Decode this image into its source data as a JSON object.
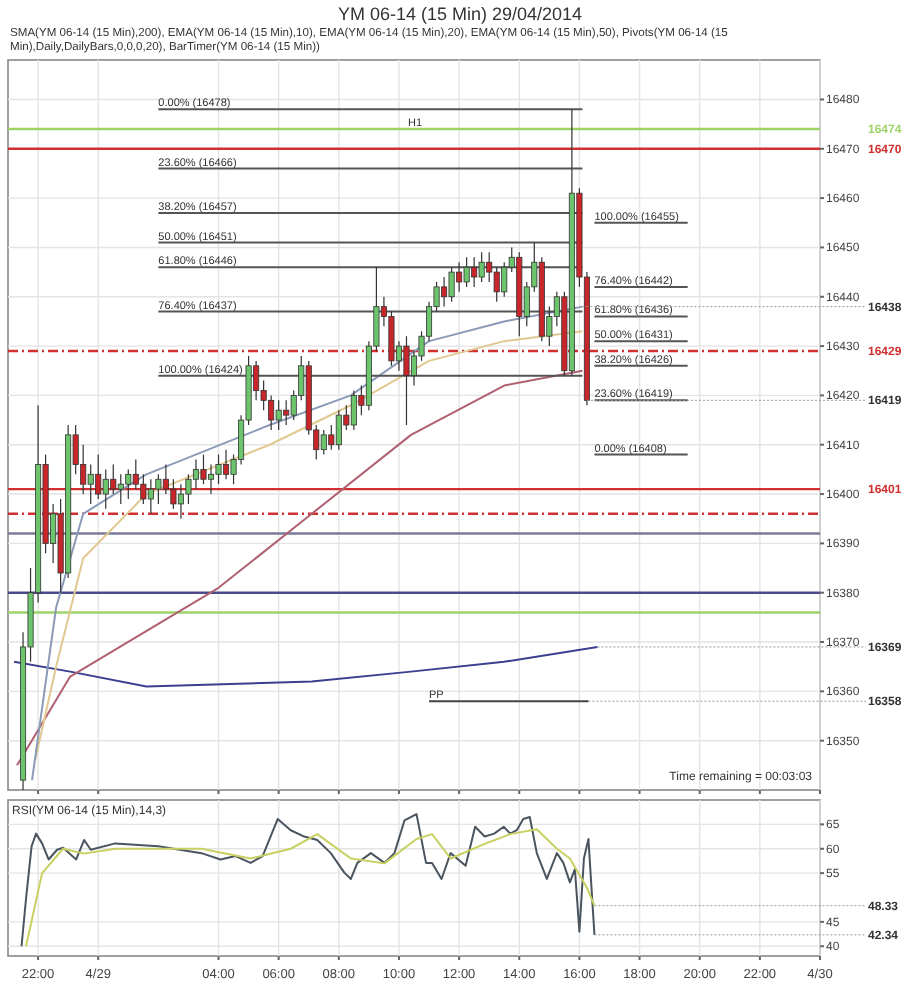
{
  "chart_data": [
    {
      "type": "candlestick",
      "title": "YM 06-14 (15 Min)  29/04/2014",
      "subtitle": "SMA(YM 06-14 (15 Min),200), EMA(YM 06-14 (15 Min),10), EMA(YM 06-14 (15 Min),20), EMA(YM 06-14 (15 Min),50), Pivots(YM 06-14 (15 Min),Daily,DailyBars,0,0,0,20), BarTimer(YM 06-14 (15 Min))",
      "x": [
        "2014-04-28T21:30",
        "2014-04-28T21:45",
        "2014-04-28T22:00",
        "2014-04-28T22:15",
        "2014-04-28T22:30",
        "2014-04-28T22:45",
        "2014-04-28T23:00",
        "2014-04-28T23:15",
        "2014-04-28T23:30",
        "2014-04-28T23:45",
        "2014-04-29T00:00",
        "2014-04-29T00:15",
        "2014-04-29T00:30",
        "2014-04-29T00:45",
        "2014-04-29T01:00",
        "2014-04-29T01:15",
        "2014-04-29T01:30",
        "2014-04-29T01:45",
        "2014-04-29T02:00",
        "2014-04-29T02:15",
        "2014-04-29T02:30",
        "2014-04-29T02:45",
        "2014-04-29T03:00",
        "2014-04-29T03:15",
        "2014-04-29T03:30",
        "2014-04-29T03:45",
        "2014-04-29T04:00",
        "2014-04-29T04:15",
        "2014-04-29T04:30",
        "2014-04-29T04:45",
        "2014-04-29T05:00",
        "2014-04-29T05:15",
        "2014-04-29T05:30",
        "2014-04-29T05:45",
        "2014-04-29T06:00",
        "2014-04-29T06:15",
        "2014-04-29T06:30",
        "2014-04-29T06:45",
        "2014-04-29T07:00",
        "2014-04-29T07:15",
        "2014-04-29T07:30",
        "2014-04-29T07:45",
        "2014-04-29T08:00",
        "2014-04-29T08:15",
        "2014-04-29T08:30",
        "2014-04-29T08:45",
        "2014-04-29T09:00",
        "2014-04-29T09:15",
        "2014-04-29T09:30",
        "2014-04-29T09:45",
        "2014-04-29T10:00",
        "2014-04-29T10:15",
        "2014-04-29T10:30",
        "2014-04-29T10:45",
        "2014-04-29T11:00",
        "2014-04-29T11:15",
        "2014-04-29T11:30",
        "2014-04-29T11:45",
        "2014-04-29T12:00",
        "2014-04-29T12:15",
        "2014-04-29T12:30",
        "2014-04-29T12:45",
        "2014-04-29T13:00",
        "2014-04-29T13:15",
        "2014-04-29T13:30",
        "2014-04-29T13:45",
        "2014-04-29T14:00",
        "2014-04-29T14:15",
        "2014-04-29T14:30",
        "2014-04-29T14:45",
        "2014-04-29T15:00",
        "2014-04-29T15:15",
        "2014-04-29T15:30",
        "2014-04-29T15:45",
        "2014-04-29T16:00",
        "2014-04-29T16:15"
      ],
      "ohlc": [
        [
          16342,
          16372,
          16340,
          16369
        ],
        [
          16369,
          16385,
          16366,
          16380
        ],
        [
          16380,
          16418,
          16378,
          16406
        ],
        [
          16406,
          16408,
          16388,
          16390
        ],
        [
          16390,
          16398,
          16386,
          16396
        ],
        [
          16396,
          16399,
          16380,
          16384
        ],
        [
          16384,
          16414,
          16383,
          16412
        ],
        [
          16412,
          16414,
          16404,
          16406
        ],
        [
          16406,
          16410,
          16400,
          16402
        ],
        [
          16402,
          16406,
          16398,
          16404
        ],
        [
          16404,
          16408,
          16399,
          16400
        ],
        [
          16400,
          16405,
          16397,
          16403
        ],
        [
          16403,
          16406,
          16400,
          16401
        ],
        [
          16401,
          16404,
          16398,
          16402
        ],
        [
          16402,
          16405,
          16399,
          16404
        ],
        [
          16404,
          16407,
          16401,
          16402
        ],
        [
          16402,
          16404,
          16398,
          16399
        ],
        [
          16399,
          16403,
          16396,
          16401
        ],
        [
          16401,
          16404,
          16398,
          16403
        ],
        [
          16403,
          16406,
          16400,
          16401
        ],
        [
          16401,
          16403,
          16397,
          16398
        ],
        [
          16398,
          16402,
          16395,
          16400
        ],
        [
          16400,
          16404,
          16398,
          16403
        ],
        [
          16403,
          16407,
          16401,
          16405
        ],
        [
          16405,
          16408,
          16402,
          16403
        ],
        [
          16403,
          16406,
          16400,
          16404
        ],
        [
          16404,
          16408,
          16402,
          16406
        ],
        [
          16406,
          16409,
          16403,
          16404
        ],
        [
          16404,
          16408,
          16402,
          16407
        ],
        [
          16407,
          16416,
          16406,
          16415
        ],
        [
          16415,
          16428,
          16414,
          16426
        ],
        [
          16426,
          16427,
          16419,
          16421
        ],
        [
          16421,
          16423,
          16417,
          16419
        ],
        [
          16419,
          16420,
          16413,
          16415
        ],
        [
          16415,
          16419,
          16413,
          16417
        ],
        [
          16417,
          16419,
          16414,
          16416
        ],
        [
          16416,
          16421,
          16415,
          16420
        ],
        [
          16420,
          16428,
          16419,
          16426
        ],
        [
          16426,
          16427,
          16412,
          16413
        ],
        [
          16413,
          16414,
          16407,
          16409
        ],
        [
          16409,
          16413,
          16408,
          16412
        ],
        [
          16412,
          16414,
          16409,
          16410
        ],
        [
          16410,
          16417,
          16409,
          16416
        ],
        [
          16416,
          16418,
          16413,
          16414
        ],
        [
          16414,
          16421,
          16413,
          16420
        ],
        [
          16420,
          16422,
          16416,
          16418
        ],
        [
          16418,
          16431,
          16417,
          16430
        ],
        [
          16430,
          16446,
          16429,
          16438
        ],
        [
          16438,
          16440,
          16434,
          16436
        ],
        [
          16436,
          16437,
          16426,
          16427
        ],
        [
          16427,
          16431,
          16425,
          16430
        ],
        [
          16430,
          16432,
          16414,
          16424
        ],
        [
          16424,
          16429,
          16422,
          16428
        ],
        [
          16428,
          16433,
          16427,
          16432
        ],
        [
          16432,
          16439,
          16431,
          16438
        ],
        [
          16438,
          16443,
          16437,
          16442
        ],
        [
          16442,
          16444,
          16438,
          16440
        ],
        [
          16440,
          16446,
          16439,
          16445
        ],
        [
          16445,
          16447,
          16441,
          16443
        ],
        [
          16443,
          16448,
          16442,
          16446
        ],
        [
          16446,
          16448,
          16442,
          16444
        ],
        [
          16444,
          16449,
          16443,
          16447
        ],
        [
          16447,
          16449,
          16443,
          16445
        ],
        [
          16445,
          16446,
          16439,
          16441
        ],
        [
          16441,
          16447,
          16440,
          16446
        ],
        [
          16446,
          16450,
          16445,
          16448
        ],
        [
          16448,
          16449,
          16432,
          16436
        ],
        [
          16436,
          16443,
          16434,
          16442
        ],
        [
          16442,
          16451,
          16441,
          16447
        ],
        [
          16447,
          16448,
          16431,
          16432
        ],
        [
          16432,
          16438,
          16430,
          16436
        ],
        [
          16436,
          16441,
          16434,
          16440
        ],
        [
          16440,
          16441,
          16424,
          16425
        ],
        [
          16425,
          16478,
          16424,
          16461
        ],
        [
          16461,
          16462,
          16442,
          16444
        ],
        [
          16444,
          16445,
          16418,
          16419
        ]
      ],
      "series": [
        {
          "type": "line",
          "color": "#3b3f8f",
          "x": [
            "2014-04-28T21:12",
            "2014-04-28T23:04",
            "2014-04-29T01:36",
            "2014-04-29T07:06",
            "2014-04-29T10:24",
            "2014-04-29T13:30",
            "2014-04-29T16:36"
          ],
          "values": [
            16366,
            16364,
            16361,
            16362,
            16364,
            16366,
            16369
          ]
        },
        {
          "type": "line",
          "color": "#b06070",
          "x": [
            "2014-04-28T21:18",
            "2014-04-28T23:04",
            "2014-04-29T04:00",
            "2014-04-29T07:06",
            "2014-04-29T10:24",
            "2014-04-29T13:30",
            "2014-04-29T16:06"
          ],
          "values": [
            16345,
            16363,
            16381,
            16396,
            16412,
            16422,
            16425
          ]
        },
        {
          "type": "line",
          "color": "#e0c890",
          "x": [
            "2014-04-28T21:54",
            "2014-04-28T22:36",
            "2014-04-28T23:30",
            "2014-04-29T01:36",
            "2014-04-29T05:42",
            "2014-04-29T08:24",
            "2014-04-29T11:00",
            "2014-04-29T13:30",
            "2014-04-29T16:06"
          ],
          "values": [
            16346,
            16365,
            16387,
            16400,
            16410,
            16418,
            16427,
            16431,
            16433
          ]
        },
        {
          "type": "line",
          "color": "#8a9ab8",
          "x": [
            "2014-04-28T21:48",
            "2014-04-28T22:36",
            "2014-04-28T23:30",
            "2014-04-29T01:36",
            "2014-04-29T05:42",
            "2014-04-29T08:24",
            "2014-04-29T11:00",
            "2014-04-29T13:30",
            "2014-04-29T16:06"
          ],
          "values": [
            16342,
            16377,
            16396,
            16404,
            16414,
            16420,
            16431,
            16435,
            16438
          ]
        },
        {
          "type": "line",
          "color": "#555555",
          "x": [
            "2014-04-29T02:00",
            "2014-04-29T16:06"
          ],
          "values": [
            16478,
            16478
          ]
        },
        {
          "type": "line",
          "color": "#555555",
          "x": [
            "2014-04-29T02:00",
            "2014-04-29T16:06"
          ],
          "values": [
            16466,
            16466
          ]
        },
        {
          "type": "line",
          "color": "#555555",
          "x": [
            "2014-04-29T02:00",
            "2014-04-29T16:06"
          ],
          "values": [
            16457,
            16457
          ]
        },
        {
          "type": "line",
          "color": "#555555",
          "x": [
            "2014-04-29T02:00",
            "2014-04-29T16:06"
          ],
          "values": [
            16451,
            16451
          ]
        },
        {
          "type": "line",
          "color": "#555555",
          "x": [
            "2014-04-29T02:00",
            "2014-04-29T16:06"
          ],
          "values": [
            16446,
            16446
          ]
        },
        {
          "type": "line",
          "color": "#555555",
          "x": [
            "2014-04-29T02:00",
            "2014-04-29T16:06"
          ],
          "values": [
            16437,
            16437
          ]
        },
        {
          "type": "line",
          "color": "#555555",
          "x": [
            "2014-04-29T02:00",
            "2014-04-29T16:06"
          ],
          "values": [
            16424,
            16424
          ]
        },
        {
          "type": "line",
          "color": "#555555",
          "x": [
            "2014-04-29T16:30",
            "2014-04-29T19:36"
          ],
          "values": [
            16455,
            16455
          ]
        },
        {
          "type": "line",
          "color": "#555555",
          "x": [
            "2014-04-29T16:30",
            "2014-04-29T19:36"
          ],
          "values": [
            16442,
            16442
          ]
        },
        {
          "type": "line",
          "color": "#555555",
          "x": [
            "2014-04-29T16:30",
            "2014-04-29T19:36"
          ],
          "values": [
            16436,
            16436
          ]
        },
        {
          "type": "line",
          "color": "#555555",
          "x": [
            "2014-04-29T16:30",
            "2014-04-29T19:36"
          ],
          "values": [
            16431,
            16431
          ]
        },
        {
          "type": "line",
          "color": "#555555",
          "x": [
            "2014-04-29T16:30",
            "2014-04-29T19:36"
          ],
          "values": [
            16426,
            16426
          ]
        },
        {
          "type": "line",
          "color": "#555555",
          "x": [
            "2014-04-29T16:30",
            "2014-04-29T19:36"
          ],
          "values": [
            16419,
            16419
          ]
        },
        {
          "type": "line",
          "color": "#555555",
          "x": [
            "2014-04-29T16:30",
            "2014-04-29T19:36"
          ],
          "values": [
            16408,
            16408
          ]
        },
        {
          "type": "line",
          "color": "#444444",
          "x": [
            "2014-04-29T11:00",
            "2014-04-29T16:18"
          ],
          "values": [
            16358,
            16358
          ]
        }
      ],
      "xlim": [
        "2014-04-28T21:00",
        "2014-04-30T00:00"
      ],
      "ylim": [
        16340,
        16488
      ],
      "xticks": [
        {
          "value": "2014-04-28T22:00",
          "label": null
        },
        {
          "value": "2014-04-29T00:00",
          "label": null
        },
        {
          "value": "2014-04-29T04:00",
          "label": null
        },
        {
          "value": "2014-04-29T06:00",
          "label": null
        },
        {
          "value": "2014-04-29T08:00",
          "label": null
        },
        {
          "value": "2014-04-29T10:00",
          "label": null
        },
        {
          "value": "2014-04-29T12:00",
          "label": null
        },
        {
          "value": "2014-04-29T14:00",
          "label": null
        },
        {
          "value": "2014-04-29T16:00",
          "label": null
        },
        {
          "value": "2014-04-29T18:00",
          "label": null
        },
        {
          "value": "2014-04-29T20:00",
          "label": null
        },
        {
          "value": "2014-04-29T22:00",
          "label": null
        },
        {
          "value": "2014-04-30T00:00",
          "label": null
        }
      ],
      "yticks": [
        16350,
        16360,
        16370,
        16380,
        16390,
        16400,
        16410,
        16420,
        16430,
        16440,
        16450,
        16460,
        16470,
        16480
      ],
      "tick_labels": "y",
      "grid": true,
      "ref_lines": [
        {
          "axis": "y",
          "value": 16474,
          "label": "16474",
          "color": "#9ed36a"
        },
        {
          "axis": "y",
          "value": 16470,
          "label": "16470",
          "color": "#d03030"
        },
        {
          "axis": "y",
          "value": 16429,
          "label": "16429",
          "color": "#d03030",
          "line_style": "dashed"
        },
        {
          "axis": "y",
          "value": 16401,
          "label": "16401",
          "color": "#d03030"
        },
        {
          "axis": "y",
          "value": 16396,
          "color": "#d03030",
          "line_style": "dashed"
        },
        {
          "axis": "y",
          "value": 16392,
          "color": "#7a7a99"
        },
        {
          "axis": "y",
          "value": 16380,
          "color": "#4a4a8a"
        },
        {
          "axis": "y",
          "value": 16376,
          "color": "#9ed36a"
        }
      ],
      "annotations": [
        {
          "text": "H1",
          "x": "2014-04-29T10:18",
          "y": 16474
        },
        {
          "text": "0.00% (16478)",
          "x": "2014-04-29T02:00",
          "y": 16478
        },
        {
          "text": "23.60% (16466)",
          "x": "2014-04-29T02:00",
          "y": 16466
        },
        {
          "text": "38.20% (16457)",
          "x": "2014-04-29T02:00",
          "y": 16457
        },
        {
          "text": "50.00% (16451)",
          "x": "2014-04-29T02:00",
          "y": 16451
        },
        {
          "text": "61.80% (16446)",
          "x": "2014-04-29T02:00",
          "y": 16446
        },
        {
          "text": "76.40% (16437)",
          "x": "2014-04-29T02:00",
          "y": 16437
        },
        {
          "text": "100.00% (16424)",
          "x": "2014-04-29T02:00",
          "y": 16424
        },
        {
          "text": "100.00% (16455)",
          "x": "2014-04-29T16:30",
          "y": 16455
        },
        {
          "text": "76.40% (16442)",
          "x": "2014-04-29T16:30",
          "y": 16442
        },
        {
          "text": "61.80% (16436)",
          "x": "2014-04-29T16:30",
          "y": 16436
        },
        {
          "text": "50.00% (16431)",
          "x": "2014-04-29T16:30",
          "y": 16431
        },
        {
          "text": "38.20% (16426)",
          "x": "2014-04-29T16:30",
          "y": 16426
        },
        {
          "text": "23.60% (16419)",
          "x": "2014-04-29T16:30",
          "y": 16419
        },
        {
          "text": "0.00% (16408)",
          "x": "2014-04-29T16:30",
          "y": 16408
        },
        {
          "text": "PP",
          "x": "2014-04-29T11:00",
          "y": 16358
        },
        {
          "text": "16438",
          "x": "2014-04-29T16:06",
          "y": 16438
        },
        {
          "text": "16419",
          "x": "2014-04-29T16:15",
          "y": 16419
        },
        {
          "text": "16369",
          "x": "2014-04-29T16:36",
          "y": 16369
        },
        {
          "text": "16358",
          "x": "2014-04-29T16:18",
          "y": 16358
        },
        "Time remaining = 00:03:03"
      ]
    },
    {
      "type": "line",
      "title": "RSI(YM 06-14 (15 Min),14,3)",
      "series": [
        {
          "color": "#4a5560",
          "x": [
            "2014-04-28T21:27",
            "2014-04-28T21:36",
            "2014-04-28T21:47",
            "2014-04-28T21:56",
            "2014-04-28T22:08",
            "2014-04-28T22:21",
            "2014-04-28T22:38",
            "2014-04-28T22:50",
            "2014-04-28T23:16",
            "2014-04-28T23:32",
            "2014-04-28T23:45",
            "2014-04-29T00:34",
            "2014-04-29T02:00",
            "2014-04-29T03:26",
            "2014-04-29T04:04",
            "2014-04-29T04:34",
            "2014-04-29T05:04",
            "2014-04-29T05:28",
            "2014-04-29T05:58",
            "2014-04-29T06:24",
            "2014-04-29T06:51",
            "2014-04-29T07:17",
            "2014-04-29T07:44",
            "2014-04-29T08:11",
            "2014-04-29T08:24",
            "2014-04-29T08:37",
            "2014-04-29T09:04",
            "2014-04-29T09:31",
            "2014-04-29T09:51",
            "2014-04-29T10:11",
            "2014-04-29T10:35",
            "2014-04-29T10:54",
            "2014-04-29T11:06",
            "2014-04-29T11:25",
            "2014-04-29T11:43",
            "2014-04-29T12:13",
            "2014-04-29T12:32",
            "2014-04-29T12:51",
            "2014-04-29T13:10",
            "2014-04-29T13:29",
            "2014-04-29T13:42",
            "2014-04-29T13:55",
            "2014-04-29T14:08",
            "2014-04-29T14:21",
            "2014-04-29T14:35",
            "2014-04-29T14:55",
            "2014-04-29T15:15",
            "2014-04-29T15:28",
            "2014-04-29T15:41",
            "2014-04-29T15:51",
            "2014-04-29T16:00",
            "2014-04-29T16:09",
            "2014-04-29T16:18",
            "2014-04-29T16:30"
          ],
          "values": [
            40,
            49.8,
            60.5,
            63.1,
            61.1,
            57.8,
            59.8,
            60.2,
            57.8,
            61.8,
            59.8,
            61.1,
            60.5,
            59.1,
            57.8,
            58.5,
            57.1,
            58.5,
            66.1,
            63.8,
            62.5,
            61.8,
            59.1,
            55.1,
            53.8,
            57.1,
            59.1,
            57.1,
            59.1,
            65.8,
            67.1,
            57.1,
            57.1,
            53.8,
            59.1,
            56.5,
            64.5,
            62.5,
            63.1,
            64.5,
            63.1,
            63.8,
            66.1,
            66.5,
            59.1,
            53.8,
            59.1,
            57.1,
            53.1,
            55.8,
            43,
            58,
            62,
            42.34
          ]
        },
        {
          "color": "#c8d060",
          "x": [
            "2014-04-28T21:36",
            "2014-04-28T22:08",
            "2014-04-28T22:50",
            "2014-04-28T23:32",
            "2014-04-29T00:34",
            "2014-04-29T03:26",
            "2014-04-29T05:04",
            "2014-04-29T06:24",
            "2014-04-29T07:17",
            "2014-04-29T08:24",
            "2014-04-29T09:31",
            "2014-04-29T10:35",
            "2014-04-29T11:06",
            "2014-04-29T11:43",
            "2014-04-29T12:51",
            "2014-04-29T13:42",
            "2014-04-29T14:35",
            "2014-04-29T15:15",
            "2014-04-29T15:41",
            "2014-04-29T16:15",
            "2014-04-29T16:30"
          ],
          "values": [
            40,
            55,
            60,
            59,
            60,
            60,
            58,
            60,
            63,
            58,
            57,
            62,
            63,
            58,
            61,
            63,
            64,
            60,
            58,
            52,
            48.33
          ]
        }
      ],
      "xlim": [
        "2014-04-28T21:00",
        "2014-04-30T00:00"
      ],
      "ylim": [
        38,
        70
      ],
      "xticks": [
        {
          "value": "2014-04-28T22:00",
          "label": "22:00"
        },
        {
          "value": "2014-04-29T00:00",
          "label": "4/29"
        },
        {
          "value": "2014-04-29T04:00",
          "label": "04:00"
        },
        {
          "value": "2014-04-29T06:00",
          "label": "06:00"
        },
        {
          "value": "2014-04-29T08:00",
          "label": "08:00"
        },
        {
          "value": "2014-04-29T10:00",
          "label": "10:00"
        },
        {
          "value": "2014-04-29T12:00",
          "label": "12:00"
        },
        {
          "value": "2014-04-29T14:00",
          "label": "14:00"
        },
        {
          "value": "2014-04-29T16:00",
          "label": "16:00"
        },
        {
          "value": "2014-04-29T18:00",
          "label": "18:00"
        },
        {
          "value": "2014-04-29T20:00",
          "label": "20:00"
        },
        {
          "value": "2014-04-29T22:00",
          "label": "22:00"
        },
        {
          "value": "2014-04-30T00:00",
          "label": "4/30"
        }
      ],
      "yticks": [
        40,
        45,
        55,
        60,
        65
      ],
      "grid": true,
      "annotations": [
        {
          "text": "48.33",
          "x": "2014-04-29T16:30",
          "y": 48.33
        },
        {
          "text": "42.34",
          "x": "2014-04-29T16:30",
          "y": 42.34
        }
      ]
    }
  ]
}
